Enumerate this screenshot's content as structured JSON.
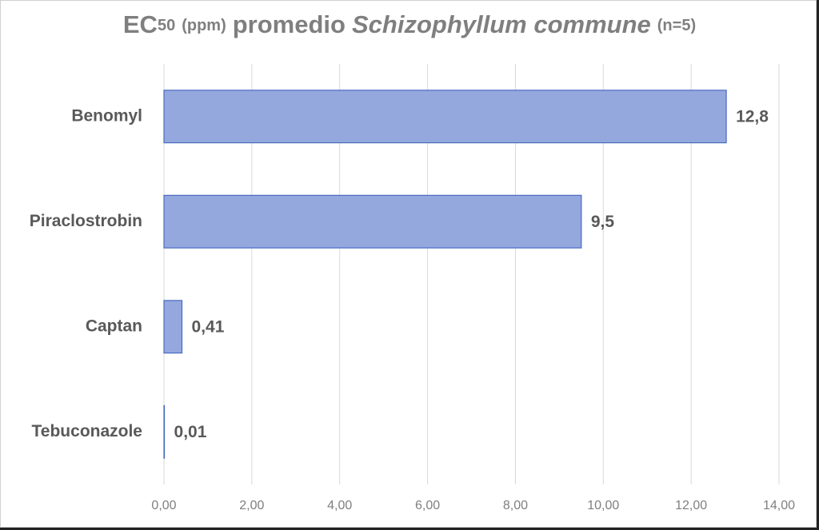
{
  "chart_data": {
    "type": "bar",
    "orientation": "horizontal",
    "title": [
      "EC",
      "50",
      "(ppm)",
      "promedio",
      "Schizophyllum commune",
      "(n=5)"
    ],
    "categories": [
      "Benomyl",
      "Piraclostrobin",
      "Captan",
      "Tebuconazole"
    ],
    "values": [
      12.8,
      9.5,
      0.41,
      0.01
    ],
    "value_labels": [
      "12,8",
      "9,5",
      "0,41",
      "0,01"
    ],
    "color": "#94a8de",
    "xlim": [
      0,
      14
    ],
    "xticks": [
      {
        "value": 0,
        "label": "0,00"
      },
      {
        "value": 2,
        "label": "2,00"
      },
      {
        "value": 4,
        "label": "4,00"
      },
      {
        "value": 6,
        "label": "6,00"
      },
      {
        "value": 8,
        "label": "8,00"
      },
      {
        "value": 10,
        "label": "10,00"
      },
      {
        "value": 12,
        "label": "12,00"
      },
      {
        "value": 14,
        "label": "14,00"
      }
    ],
    "grid": true
  }
}
